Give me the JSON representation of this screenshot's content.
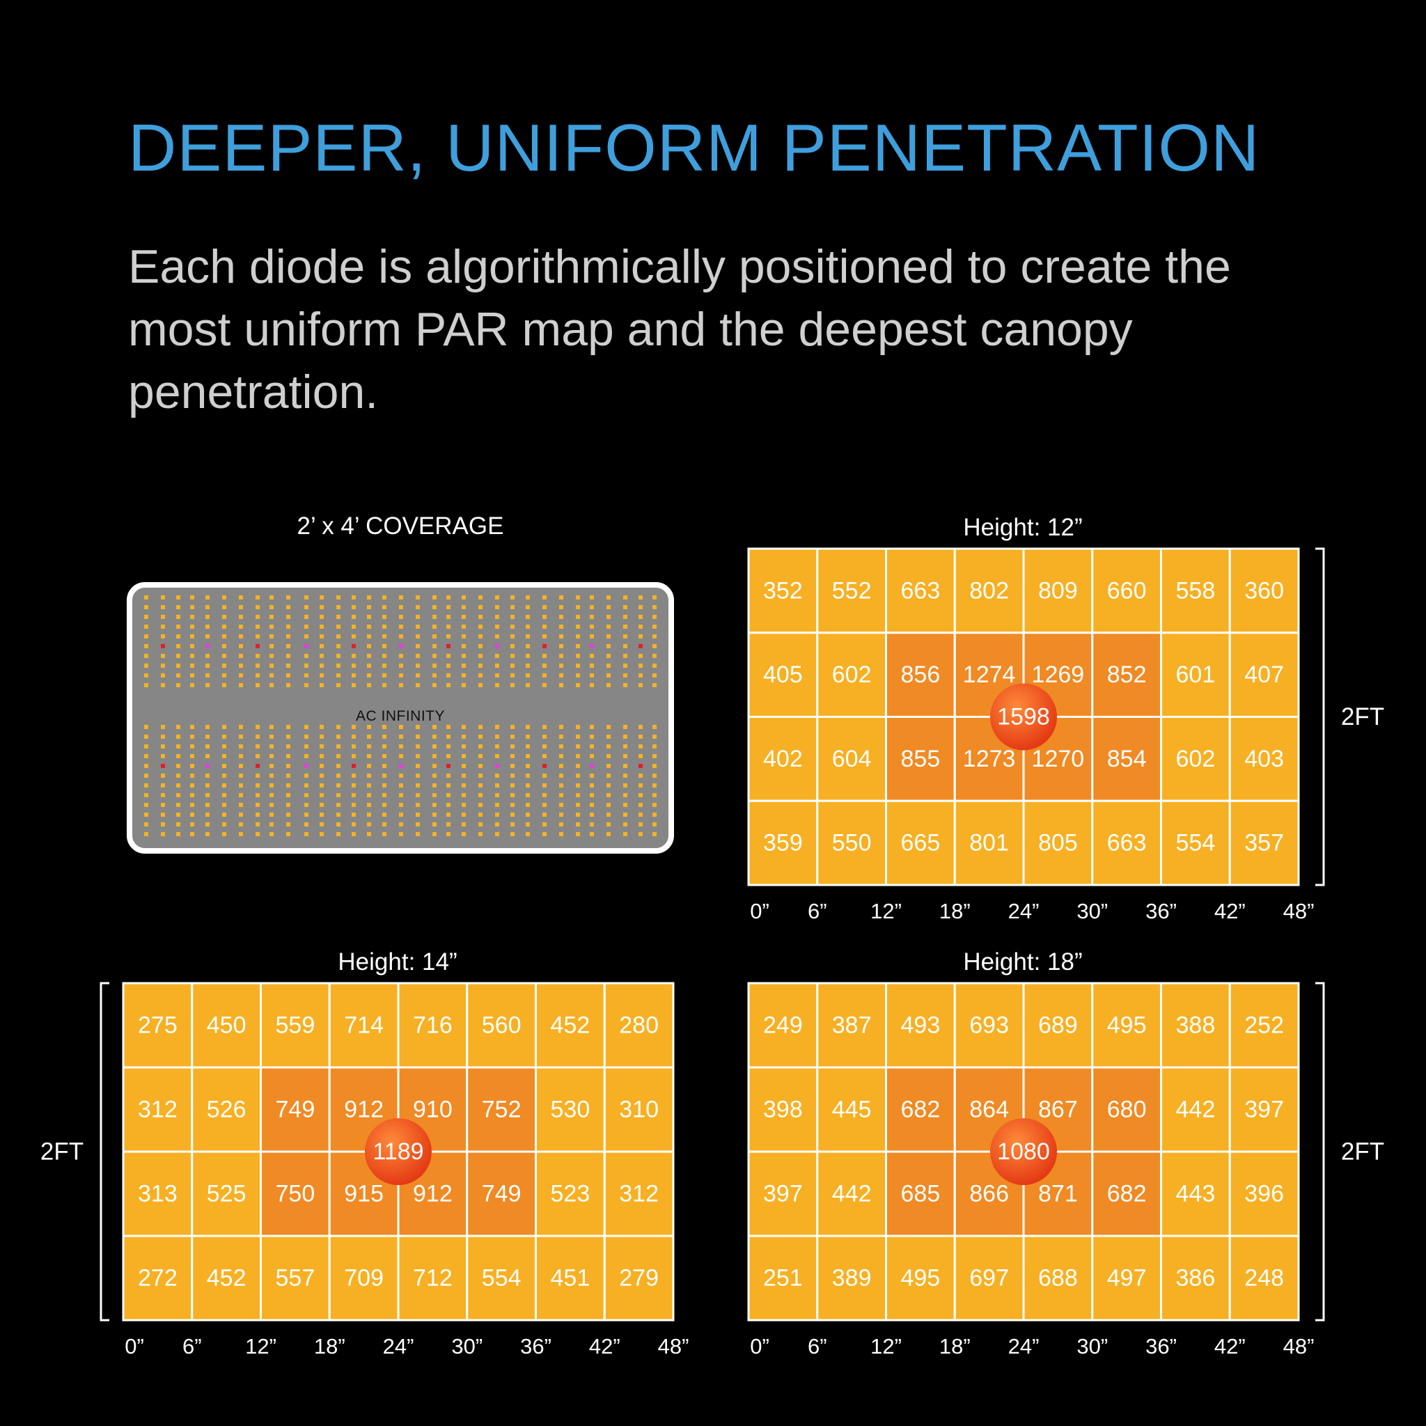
{
  "headline": "DEEPER, UNIFORM PENETRATION",
  "subtext": "Each diode is algorithmically positioned to create the most uniform PAR map and the deepest canopy penetration.",
  "fixture_panel": {
    "title": "2’ x 4’ COVERAGE",
    "brand": "AC INFINITY",
    "colors": {
      "body": "#868686",
      "led": "#f2b324",
      "uv_led": "#e040d6",
      "ir_led": "#e0202a"
    }
  },
  "colors": {
    "headline": "#3f9fdc",
    "cell_low": "#f7b023",
    "cell_high": "#f08a24",
    "peak": "#e43a14"
  },
  "chart_data": [
    {
      "type": "heatmap",
      "title": "Height: 12”",
      "unit_label": "2FT",
      "x_ticks": [
        "0”",
        "6”",
        "12”",
        "18”",
        "24”",
        "30”",
        "36”",
        "42”",
        "48”"
      ],
      "bracket_side": "right",
      "peak": 1598,
      "rows": [
        [
          352,
          552,
          663,
          802,
          809,
          660,
          558,
          360
        ],
        [
          405,
          602,
          856,
          1274,
          1269,
          852,
          601,
          407
        ],
        [
          402,
          604,
          855,
          1273,
          1270,
          854,
          602,
          403
        ],
        [
          359,
          550,
          665,
          801,
          805,
          663,
          554,
          357
        ]
      ]
    },
    {
      "type": "heatmap",
      "title": "Height: 14”",
      "unit_label": "2FT",
      "x_ticks": [
        "0”",
        "6”",
        "12”",
        "18”",
        "24”",
        "30”",
        "36”",
        "42”",
        "48”"
      ],
      "bracket_side": "left",
      "peak": 1189,
      "rows": [
        [
          275,
          450,
          559,
          714,
          716,
          560,
          452,
          280
        ],
        [
          312,
          526,
          749,
          912,
          910,
          752,
          530,
          310
        ],
        [
          313,
          525,
          750,
          915,
          912,
          749,
          523,
          312
        ],
        [
          272,
          452,
          557,
          709,
          712,
          554,
          451,
          279
        ]
      ]
    },
    {
      "type": "heatmap",
      "title": "Height: 18”",
      "unit_label": "2FT",
      "x_ticks": [
        "0”",
        "6”",
        "12”",
        "18”",
        "24”",
        "30”",
        "36”",
        "42”",
        "48”"
      ],
      "bracket_side": "right",
      "peak": 1080,
      "rows": [
        [
          249,
          387,
          493,
          693,
          689,
          495,
          388,
          252
        ],
        [
          398,
          445,
          682,
          864,
          867,
          680,
          442,
          397
        ],
        [
          397,
          442,
          685,
          866,
          871,
          682,
          443,
          396
        ],
        [
          251,
          389,
          495,
          697,
          688,
          497,
          386,
          248
        ]
      ]
    }
  ]
}
